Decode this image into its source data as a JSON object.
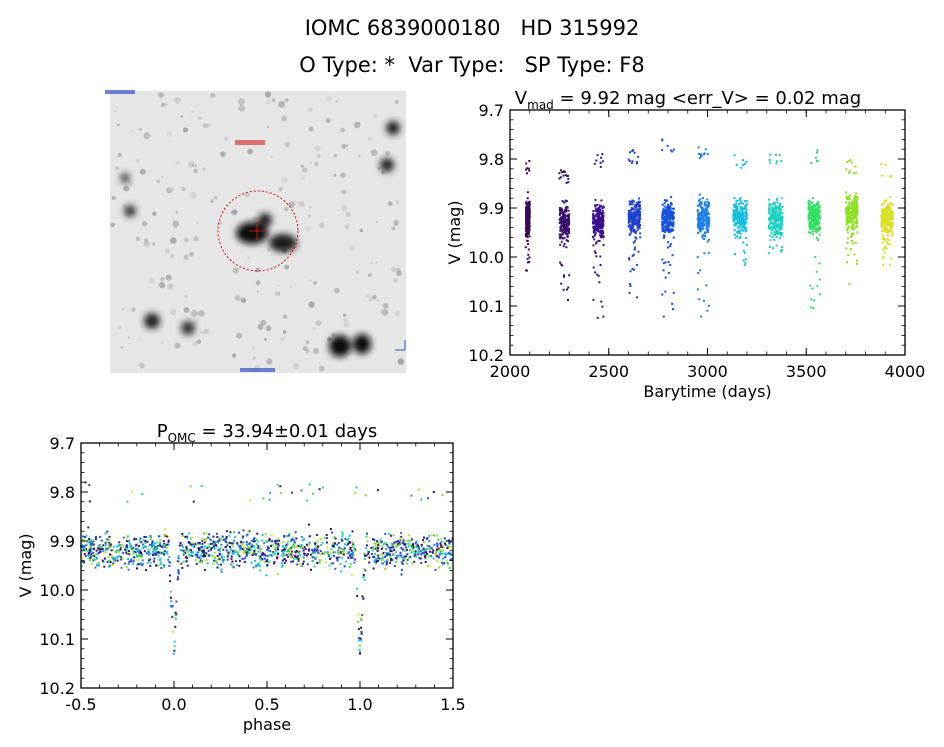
{
  "header": {
    "line1": "IOMC 6839000180   HD 315992",
    "line2": "O Type: *  Var Type:   SP Type: F8"
  },
  "sky_image": {
    "description_free": true
  },
  "chart_data": [
    {
      "type": "scatter",
      "title_main": "V",
      "title_sub": "mad",
      "title_rest": " = 9.92 mag <err_V> = 0.02 mag",
      "xlabel": "Barytime (days)",
      "ylabel": "V (mag)",
      "xlim": [
        2000,
        4000
      ],
      "ylim": [
        10.2,
        9.7
      ],
      "xticks": [
        "2000",
        "2500",
        "3000",
        "3500",
        "4000"
      ],
      "yticks": [
        "9.7",
        "9.8",
        "9.9",
        "10.0",
        "10.1",
        "10.2"
      ],
      "ytick_values": [
        9.7,
        9.8,
        9.9,
        10.0,
        10.1,
        10.2
      ],
      "xtick_values": [
        2000,
        2500,
        3000,
        3500,
        4000
      ],
      "mean": 9.92,
      "colormap": "rainbow-by-time",
      "segments": [
        {
          "x": [
            2080,
            2100
          ],
          "center": 9.92,
          "min": 9.8,
          "max": 10.04,
          "color": "#3a0a5a"
        },
        {
          "x": [
            2250,
            2300
          ],
          "center": 9.93,
          "min": 9.82,
          "max": 10.09,
          "color": "#3a1070"
        },
        {
          "x": [
            2420,
            2475
          ],
          "center": 9.93,
          "min": 9.79,
          "max": 10.13,
          "color": "#3a1090"
        },
        {
          "x": [
            2600,
            2660
          ],
          "center": 9.92,
          "min": 9.78,
          "max": 10.09,
          "color": "#2040d0"
        },
        {
          "x": [
            2770,
            2830
          ],
          "center": 9.92,
          "min": 9.76,
          "max": 10.13,
          "color": "#1550e0"
        },
        {
          "x": [
            2950,
            3010
          ],
          "center": 9.92,
          "min": 9.77,
          "max": 10.13,
          "color": "#1d80e6"
        },
        {
          "x": [
            3130,
            3200
          ],
          "center": 9.92,
          "min": 9.79,
          "max": 10.02,
          "color": "#13bfe0"
        },
        {
          "x": [
            3310,
            3380
          ],
          "center": 9.92,
          "min": 9.79,
          "max": 10.0,
          "color": "#18d2c0"
        },
        {
          "x": [
            3510,
            3570
          ],
          "center": 9.92,
          "min": 9.78,
          "max": 10.11,
          "color": "#2ee060"
        },
        {
          "x": [
            3700,
            3760
          ],
          "center": 9.91,
          "min": 9.8,
          "max": 10.06,
          "color": "#8ee020"
        },
        {
          "x": [
            3880,
            3940
          ],
          "center": 9.92,
          "min": 9.81,
          "max": 10.02,
          "color": "#d8e020"
        }
      ]
    },
    {
      "type": "scatter",
      "title_main": "P",
      "title_sub": "OMC",
      "title_rest": " = 33.94±0.01 days",
      "xlabel": "phase",
      "ylabel": "V (mag)",
      "xlim": [
        -0.5,
        1.5
      ],
      "ylim": [
        10.2,
        9.7
      ],
      "xticks": [
        "-0.5",
        "0.0",
        "0.5",
        "1.0",
        "1.5"
      ],
      "yticks": [
        "9.7",
        "9.8",
        "9.9",
        "10.0",
        "10.1",
        "10.2"
      ],
      "xtick_values": [
        -0.5,
        0.0,
        0.5,
        1.0,
        1.5
      ],
      "ytick_values": [
        9.7,
        9.8,
        9.9,
        10.0,
        10.1,
        10.2
      ],
      "period_days": 33.94,
      "period_err": 0.01,
      "baseline_mag": 9.92,
      "eclipse_phases": [
        0.0,
        1.0
      ],
      "eclipse_depth_mag": 10.12,
      "colormap": "rainbow-by-time"
    }
  ]
}
